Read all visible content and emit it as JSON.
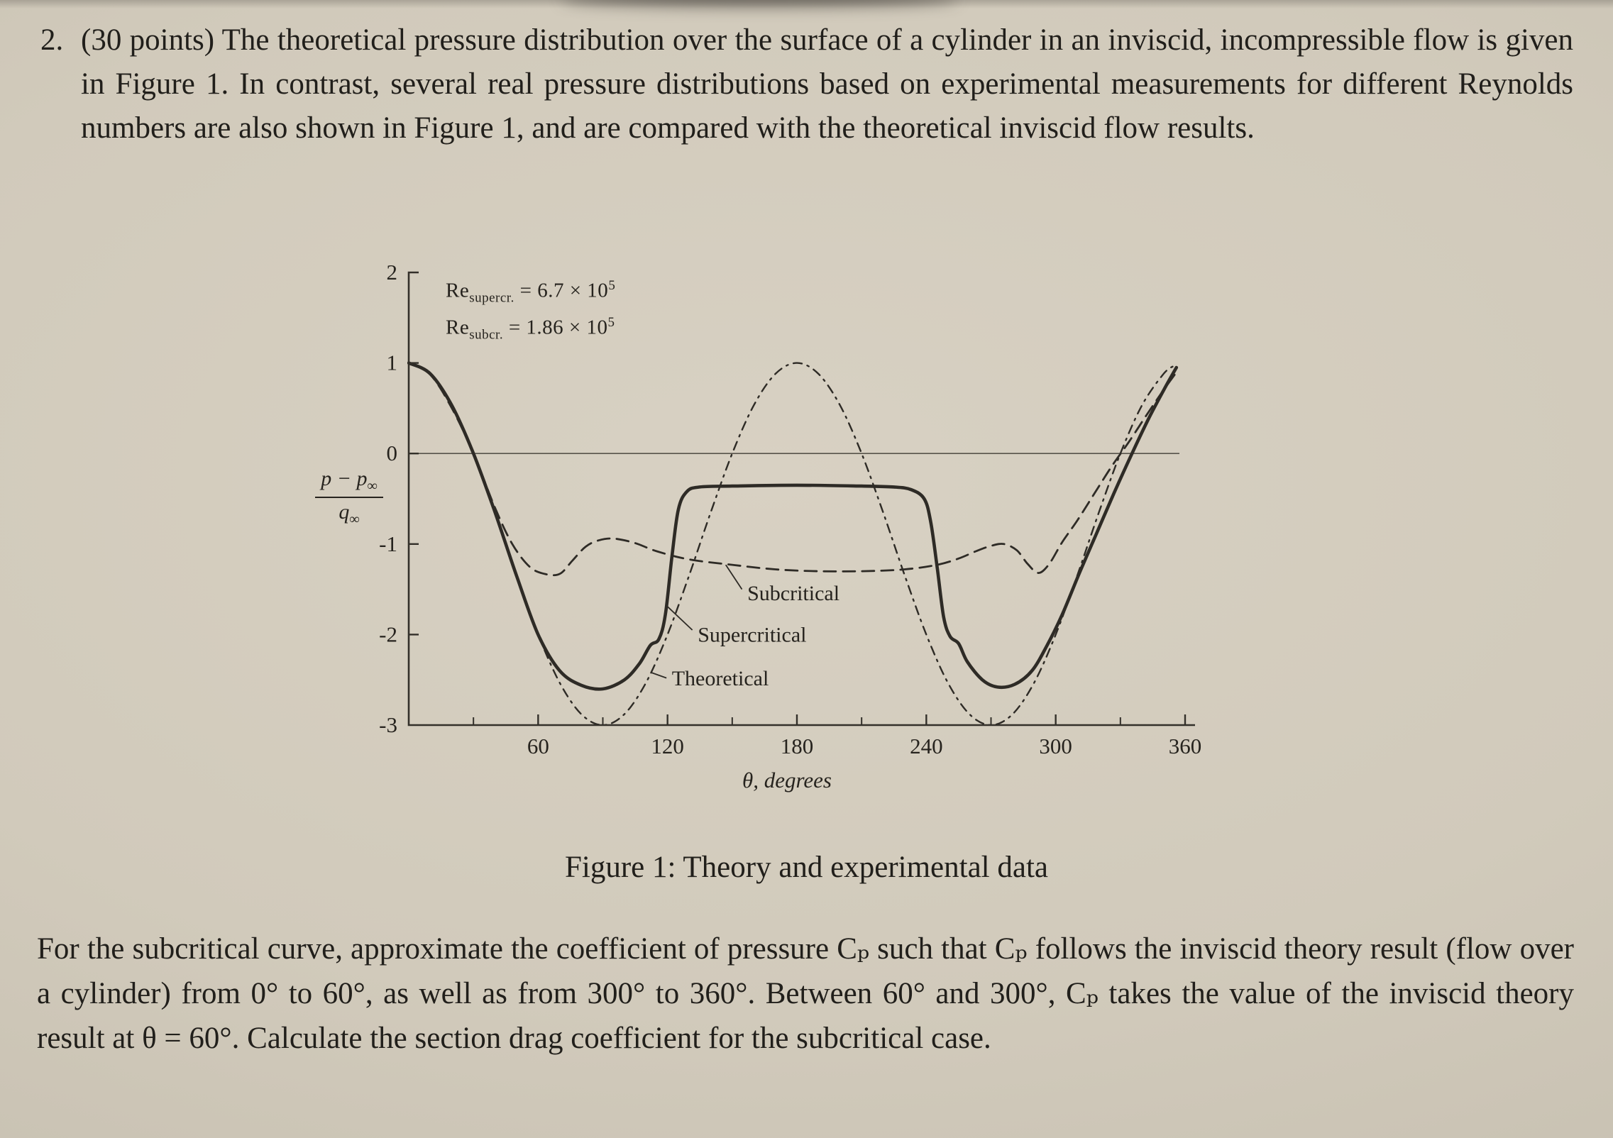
{
  "page": {
    "problem_number": "2.",
    "problem_text": "(30 points) The theoretical pressure distribution over the surface of a cylinder in an inviscid, incompressible flow is given in Figure 1. In contrast, several real pressure distributions based on experimental measurements for different Reynolds numbers are also shown in Figure 1, and are compared with the theoretical inviscid flow results.",
    "figure_caption": "Figure 1: Theory and experimental data",
    "closing_text": "For the subcritical curve, approximate the coefficient of pressure Cₚ such that Cₚ follows the inviscid theory result (flow over a cylinder) from 0° to 60°, as well as from 300° to 360°. Between 60° and 300°, Cₚ takes the value of the inviscid theory result at θ = 60°. Calculate the section drag coefficient for the subcritical case."
  },
  "chart_data": {
    "type": "line",
    "title": "",
    "xlabel": "θ, degrees",
    "ylabel": "(p − p∞) / q∞",
    "ylabel_parts": {
      "num_main": "p − p",
      "num_sub": "∞",
      "den_main": "q",
      "den_sub": "∞"
    },
    "xlim": [
      0,
      360
    ],
    "ylim": [
      -3,
      2
    ],
    "grid": false,
    "zero_line": true,
    "x_tick_labels": [
      "60",
      "120",
      "180",
      "240",
      "300",
      "360"
    ],
    "x_ticks_labeled": [
      60,
      120,
      180,
      240,
      300,
      360
    ],
    "x_ticks_minor": [
      30,
      90,
      150,
      210,
      270,
      330
    ],
    "y_tick_labels": [
      "2",
      "1",
      "0",
      "-1",
      "-2",
      "-3"
    ],
    "y_ticks": [
      2,
      1,
      0,
      -1,
      -2,
      -3
    ],
    "legend": [
      {
        "main": "Re",
        "sub": "supercr.",
        "eq": " = 6.7 × 10",
        "sup": "5"
      },
      {
        "main": "Re",
        "sub": "subcr.",
        "eq": " = 1.86 × 10",
        "sup": "5"
      }
    ],
    "annotations": [
      {
        "label": "Subcritical",
        "text_at": [
          157,
          -1.62
        ],
        "leader": [
          [
            154.5,
            -1.5
          ],
          [
            147,
            -1.23
          ]
        ]
      },
      {
        "label": "Supercritical",
        "text_at": [
          134,
          -2.08
        ],
        "leader": [
          [
            131.5,
            -1.95
          ],
          [
            119.5,
            -1.68
          ]
        ]
      },
      {
        "label": "Theoretical",
        "text_at": [
          122,
          -2.56
        ],
        "leader": [
          [
            119.5,
            -2.48
          ],
          [
            112.5,
            -2.42
          ]
        ]
      }
    ],
    "series": [
      {
        "name": "Theoretical",
        "style": "dashdot",
        "formula": "Cp = 1 - 4 sin^2(theta)",
        "points": [
          [
            0,
            1
          ],
          [
            10,
            0.879
          ],
          [
            20,
            0.532
          ],
          [
            30,
            0
          ],
          [
            40,
            -0.653
          ],
          [
            50,
            -1.347
          ],
          [
            60,
            -2
          ],
          [
            70,
            -2.532
          ],
          [
            80,
            -2.879
          ],
          [
            90,
            -3
          ],
          [
            100,
            -2.879
          ],
          [
            110,
            -2.532
          ],
          [
            120,
            -2
          ],
          [
            130,
            -1.347
          ],
          [
            140,
            -0.653
          ],
          [
            150,
            0
          ],
          [
            160,
            0.532
          ],
          [
            170,
            0.879
          ],
          [
            180,
            1
          ],
          [
            190,
            0.879
          ],
          [
            200,
            0.532
          ],
          [
            210,
            0
          ],
          [
            220,
            -0.653
          ],
          [
            230,
            -1.347
          ],
          [
            240,
            -2
          ],
          [
            250,
            -2.532
          ],
          [
            260,
            -2.879
          ],
          [
            270,
            -3
          ],
          [
            280,
            -2.879
          ],
          [
            290,
            -2.532
          ],
          [
            300,
            -2
          ],
          [
            310,
            -1.347
          ],
          [
            320,
            -0.653
          ],
          [
            330,
            0
          ],
          [
            340,
            0.532
          ],
          [
            350,
            0.879
          ],
          [
            355,
            0.97
          ]
        ]
      },
      {
        "name": "Supercritical",
        "style": "solid",
        "points": [
          [
            0,
            1
          ],
          [
            10,
            0.88
          ],
          [
            20,
            0.53
          ],
          [
            30,
            0
          ],
          [
            40,
            -0.65
          ],
          [
            50,
            -1.35
          ],
          [
            60,
            -2
          ],
          [
            70,
            -2.4
          ],
          [
            80,
            -2.56
          ],
          [
            90,
            -2.6
          ],
          [
            100,
            -2.5
          ],
          [
            107,
            -2.32
          ],
          [
            112,
            -2.12
          ],
          [
            116,
            -2.05
          ],
          [
            119,
            -1.78
          ],
          [
            122,
            -1.15
          ],
          [
            125,
            -0.62
          ],
          [
            129,
            -0.42
          ],
          [
            135,
            -0.37
          ],
          [
            150,
            -0.36
          ],
          [
            180,
            -0.35
          ],
          [
            210,
            -0.36
          ],
          [
            225,
            -0.37
          ],
          [
            233,
            -0.4
          ],
          [
            239,
            -0.5
          ],
          [
            242,
            -0.75
          ],
          [
            245,
            -1.25
          ],
          [
            248,
            -1.8
          ],
          [
            251,
            -2.02
          ],
          [
            255,
            -2.1
          ],
          [
            259,
            -2.3
          ],
          [
            266,
            -2.5
          ],
          [
            273,
            -2.58
          ],
          [
            281,
            -2.55
          ],
          [
            289,
            -2.4
          ],
          [
            296,
            -2.12
          ],
          [
            303,
            -1.78
          ],
          [
            311,
            -1.32
          ],
          [
            319,
            -0.88
          ],
          [
            327,
            -0.44
          ],
          [
            335,
            -0.02
          ],
          [
            343,
            0.38
          ],
          [
            351,
            0.74
          ],
          [
            356,
            0.95
          ]
        ]
      },
      {
        "name": "Subcritical",
        "style": "dashed",
        "points": [
          [
            0,
            1
          ],
          [
            10,
            0.87
          ],
          [
            20,
            0.5
          ],
          [
            30,
            0
          ],
          [
            40,
            -0.6
          ],
          [
            48,
            -1
          ],
          [
            56,
            -1.25
          ],
          [
            63,
            -1.33
          ],
          [
            70,
            -1.33
          ],
          [
            76,
            -1.18
          ],
          [
            82,
            -1.03
          ],
          [
            88,
            -0.96
          ],
          [
            95,
            -0.94
          ],
          [
            105,
            -0.99
          ],
          [
            115,
            -1.08
          ],
          [
            130,
            -1.17
          ],
          [
            150,
            -1.23
          ],
          [
            170,
            -1.28
          ],
          [
            190,
            -1.3
          ],
          [
            210,
            -1.3
          ],
          [
            230,
            -1.28
          ],
          [
            245,
            -1.23
          ],
          [
            255,
            -1.16
          ],
          [
            263,
            -1.08
          ],
          [
            270,
            -1.02
          ],
          [
            276,
            -1
          ],
          [
            282,
            -1.07
          ],
          [
            287,
            -1.22
          ],
          [
            292,
            -1.32
          ],
          [
            297,
            -1.22
          ],
          [
            303,
            -0.98
          ],
          [
            310,
            -0.74
          ],
          [
            318,
            -0.44
          ],
          [
            326,
            -0.14
          ],
          [
            334,
            0.13
          ],
          [
            342,
            0.42
          ],
          [
            350,
            0.7
          ],
          [
            357,
            0.93
          ]
        ]
      }
    ]
  }
}
